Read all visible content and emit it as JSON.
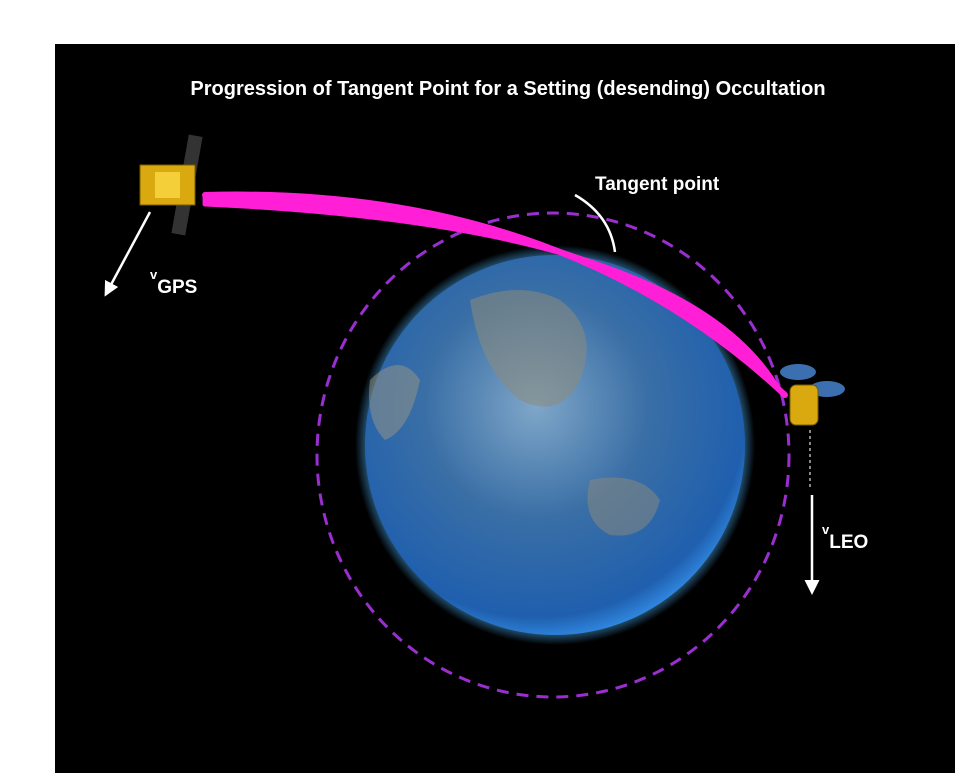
{
  "title": "Progression of Tangent Point for a Setting (desending) Occultation",
  "labels": {
    "tangent_point": "Tangent point",
    "v_gps": {
      "symbol": "v",
      "subscript": "GPS"
    },
    "v_leo": {
      "symbol": "v",
      "subscript": "LEO"
    }
  }
}
